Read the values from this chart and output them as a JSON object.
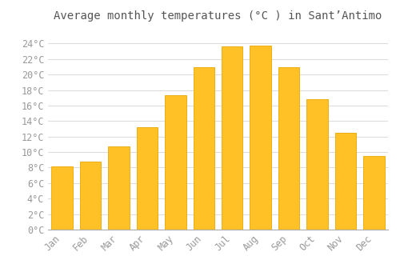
{
  "title": "Average monthly temperatures (°C ) in Sant’Antimo",
  "months": [
    "Jan",
    "Feb",
    "Mar",
    "Apr",
    "May",
    "Jun",
    "Jul",
    "Aug",
    "Sep",
    "Oct",
    "Nov",
    "Dec"
  ],
  "temperatures": [
    8.2,
    8.8,
    10.7,
    13.2,
    17.3,
    20.9,
    23.6,
    23.7,
    20.9,
    16.8,
    12.5,
    9.5
  ],
  "bar_color": "#FFC125",
  "bar_edge_color": "#E8A800",
  "background_color": "#FFFFFF",
  "grid_color": "#DDDDDD",
  "ylim": [
    0,
    26
  ],
  "yticks": [
    0,
    2,
    4,
    6,
    8,
    10,
    12,
    14,
    16,
    18,
    20,
    22,
    24
  ],
  "title_fontsize": 10,
  "tick_fontsize": 8.5,
  "font_family": "monospace",
  "tick_color": "#999999",
  "title_color": "#555555"
}
